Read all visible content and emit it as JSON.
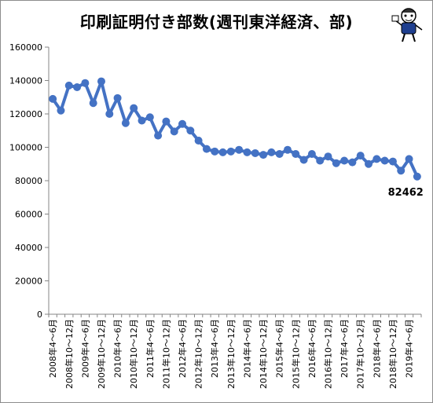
{
  "chart_data": {
    "type": "line",
    "title": "印刷証明付き部数(週刊東洋経済、部)",
    "xlabel": "",
    "ylabel": "",
    "ylim": [
      0,
      160000
    ],
    "yticks": [
      0,
      20000,
      40000,
      60000,
      80000,
      100000,
      120000,
      140000,
      160000
    ],
    "x_labels_printed": [
      "2008年4～6月",
      "2008年10～12月",
      "2009年4～6月",
      "2009年10～12月",
      "2010年4～6月",
      "2010年10～12月",
      "2011年4～6月",
      "2011年10～12月",
      "2012年4～6月",
      "2012年10～12月",
      "2013年4～6月",
      "2013年10～12月",
      "2014年4～6月",
      "2014年10～12月",
      "2015年4～6月",
      "2015年10～12月",
      "2016年4～6月",
      "2016年10～12月",
      "2017年4～6月",
      "2017年10～12月",
      "2018年4～6月",
      "2018年10～12月",
      "2019年4～6月"
    ],
    "series": [
      {
        "color": "#4472c4",
        "values": [
          129000,
          122000,
          137000,
          136000,
          138500,
          126500,
          139500,
          120000,
          129500,
          114500,
          123500,
          116000,
          118000,
          107000,
          115500,
          109500,
          114000,
          110000,
          104000,
          99000,
          97500,
          97000,
          97500,
          98500,
          97000,
          96500,
          95500,
          97000,
          96000,
          98500,
          96000,
          92500,
          96000,
          92000,
          94500,
          90500,
          92000,
          91000,
          95000,
          90000,
          93000,
          92000,
          91500,
          86000,
          93000,
          82462
        ]
      }
    ],
    "last_value_label": "82462",
    "grid": false,
    "legend": "none"
  },
  "mascot": {
    "icon": "mascot-character-icon"
  }
}
